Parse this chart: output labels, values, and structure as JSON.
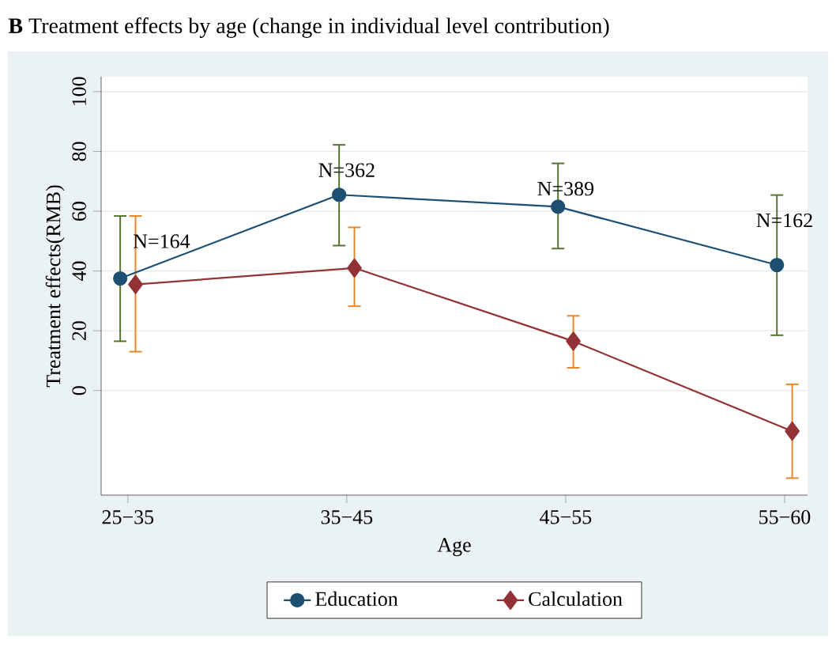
{
  "chart_data": {
    "type": "line",
    "title": "**B** Treatment effects by age (change in individual level contribution)",
    "xlabel": "Age",
    "ylabel": "Treatment effects(RMB)",
    "categories": [
      "25−35",
      "35−45",
      "45−55",
      "55−60"
    ],
    "series": [
      {
        "name": "Education",
        "color": "#1c4f72",
        "marker": "circle",
        "values": [
          37.5,
          65.5,
          61.5,
          42
        ],
        "errors": [
          [
            16.5,
            58.4
          ],
          [
            48.5,
            82.2
          ],
          [
            47.5,
            76
          ],
          [
            18.5,
            65.4
          ]
        ]
      },
      {
        "name": "Calculation",
        "color": "#923236",
        "marker": "diamond",
        "values": [
          35.5,
          41,
          16.5,
          -13.6
        ],
        "errors": [
          [
            13,
            58.4
          ],
          [
            28.2,
            54.6
          ],
          [
            7.6,
            25
          ],
          [
            -29.3,
            2.1
          ]
        ]
      }
    ],
    "annotations": [
      "N=164",
      "N=362",
      "N=389",
      "N=162"
    ],
    "ylim": [
      -35,
      105
    ],
    "yticks": [
      0,
      20,
      40,
      60,
      80,
      100
    ],
    "grid": "y",
    "legend": "bottom",
    "line_style": "solid"
  }
}
